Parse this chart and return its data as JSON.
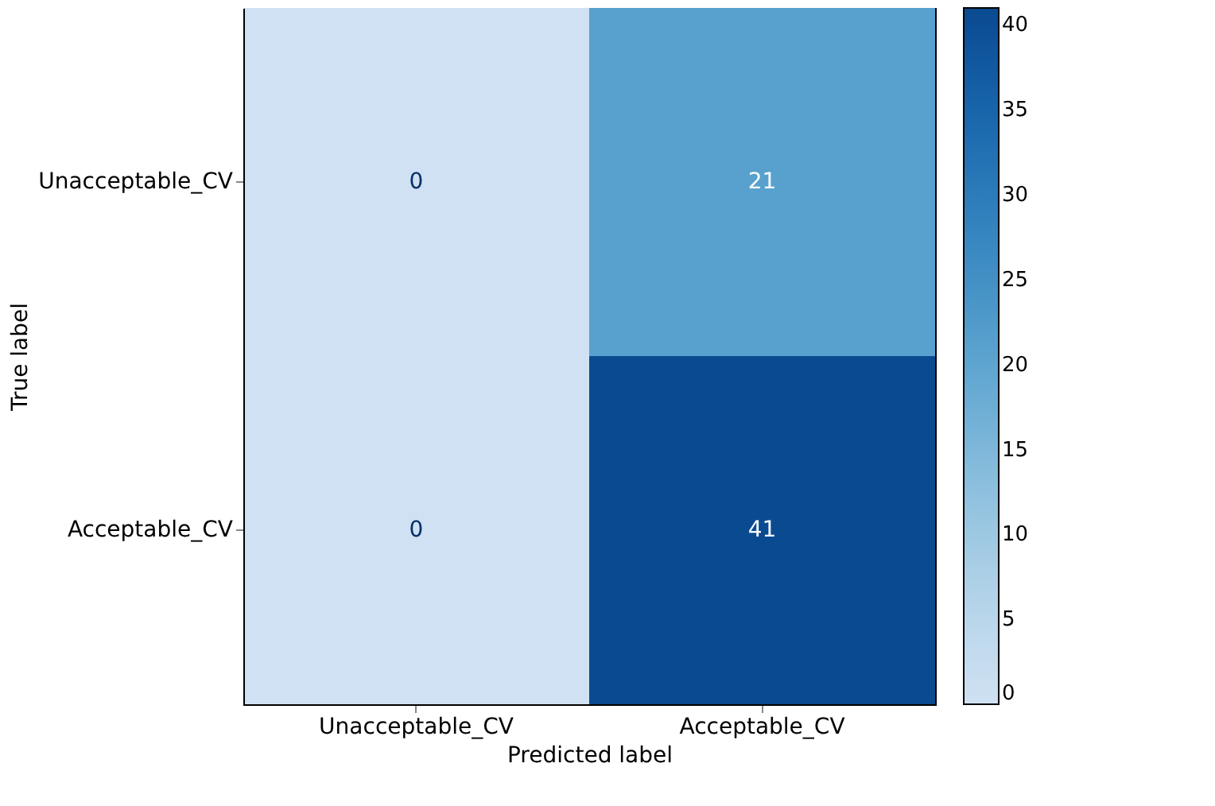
{
  "chart_data": {
    "type": "heatmap",
    "xlabel": "Predicted label",
    "ylabel": "True label",
    "categories": [
      "Unacceptable_CV",
      "Acceptable_CV"
    ],
    "y_categories": [
      "Unacceptable_CV",
      "Acceptable_CV"
    ],
    "cells": [
      [
        0,
        21
      ],
      [
        0,
        41
      ]
    ],
    "clim": [
      0,
      41
    ],
    "cticks": [
      0,
      5,
      10,
      15,
      20,
      25,
      30,
      35,
      40
    ],
    "data_labels": true
  }
}
